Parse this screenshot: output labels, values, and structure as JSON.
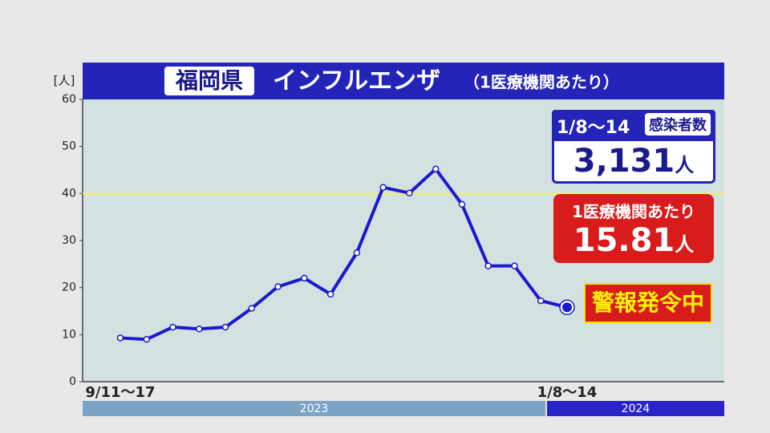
{
  "chart_data": {
    "type": "line",
    "region": "福岡県",
    "title": "インフルエンザ",
    "subtitle": "（1医療機関あたり）",
    "y_label": "[人]",
    "categories": [
      "9/11～17",
      null,
      null,
      null,
      null,
      null,
      null,
      null,
      null,
      null,
      null,
      null,
      null,
      null,
      null,
      null,
      null,
      "1/8～14"
    ],
    "series": [
      {
        "name": "1医療機関あたり",
        "color": "#1a1acc",
        "values": [
          9.3,
          9.0,
          11.6,
          11.2,
          11.6,
          15.6,
          20.2,
          22.0,
          18.6,
          27.4,
          41.3,
          40.1,
          45.2,
          37.7,
          24.6,
          24.6,
          17.2,
          15.81
        ]
      }
    ],
    "ylim": [
      0,
      60
    ],
    "yticks": [
      0,
      10,
      20,
      30,
      40,
      50,
      60
    ],
    "hline": {
      "value": 40,
      "color": "#f2f25a"
    },
    "periods": [
      {
        "label": "2023",
        "color": "#7ba3c6"
      },
      {
        "label": "2024",
        "color": "#2a24c8"
      }
    ],
    "annotations": {
      "week": "1/8～14",
      "count_label": "感染者数",
      "count": "3,131",
      "unit": "人",
      "per_label": "1医療機関あたり",
      "alert": "警報発令中"
    }
  }
}
